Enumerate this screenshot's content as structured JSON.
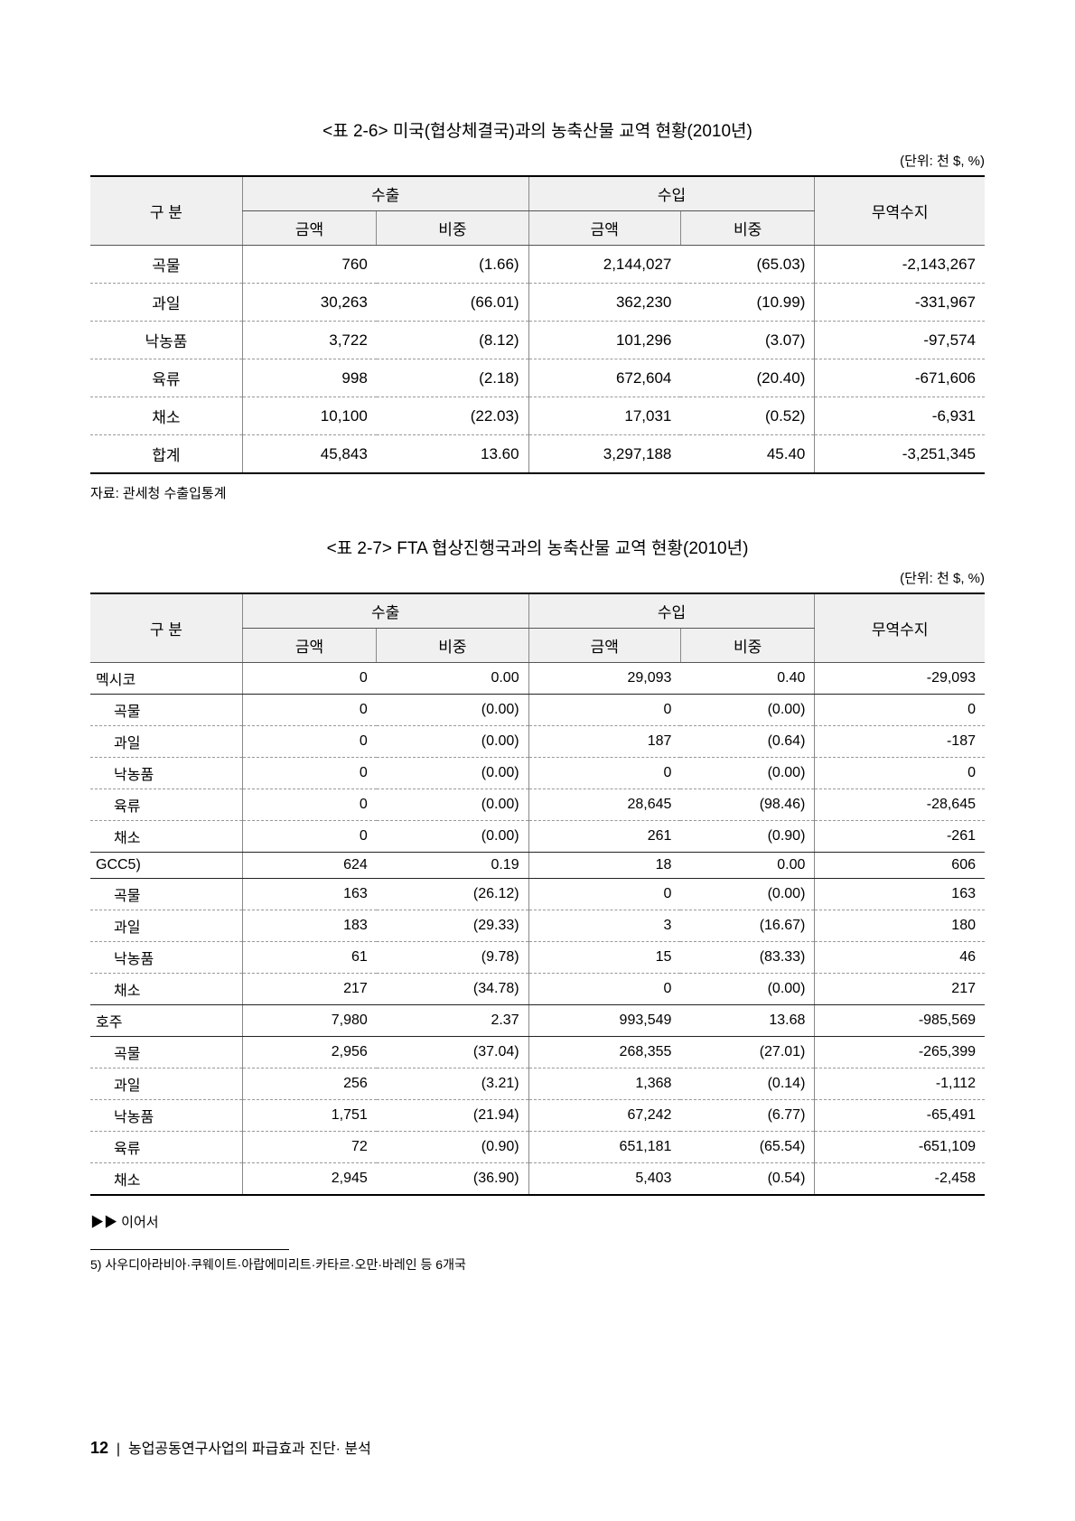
{
  "table1": {
    "title": "<표 2-6> 미국(협상체결국)과의 농축산물 교역 현황(2010년)",
    "unit": "(단위: 천 $, %)",
    "headers": {
      "category": "구 분",
      "export": "수출",
      "import": "수입",
      "balance": "무역수지",
      "amount": "금액",
      "ratio": "비중"
    },
    "rows": [
      {
        "cat": "곡물",
        "ea": "760",
        "er": "(1.66)",
        "ia": "2,144,027",
        "ir": "(65.03)",
        "bal": "-2,143,267"
      },
      {
        "cat": "과일",
        "ea": "30,263",
        "er": "(66.01)",
        "ia": "362,230",
        "ir": "(10.99)",
        "bal": "-331,967"
      },
      {
        "cat": "낙농품",
        "ea": "3,722",
        "er": "(8.12)",
        "ia": "101,296",
        "ir": "(3.07)",
        "bal": "-97,574"
      },
      {
        "cat": "육류",
        "ea": "998",
        "er": "(2.18)",
        "ia": "672,604",
        "ir": "(20.40)",
        "bal": "-671,606"
      },
      {
        "cat": "채소",
        "ea": "10,100",
        "er": "(22.03)",
        "ia": "17,031",
        "ir": "(0.52)",
        "bal": "-6,931"
      },
      {
        "cat": "합계",
        "ea": "45,843",
        "er": "13.60",
        "ia": "3,297,188",
        "ir": "45.40",
        "bal": "-3,251,345"
      }
    ],
    "source": "자료: 관세청 수출입통계"
  },
  "table2": {
    "title": "<표 2-7> FTA 협상진행국과의 농축산물 교역 현황(2010년)",
    "unit": "(단위: 천 $, %)",
    "headers": {
      "category": "구 분",
      "export": "수출",
      "import": "수입",
      "balance": "무역수지",
      "amount": "금액",
      "ratio": "비중"
    },
    "rows": [
      {
        "cat": "멕시코",
        "main": true,
        "solid": true,
        "ea": "0",
        "er": "0.00",
        "ia": "29,093",
        "ir": "0.40",
        "bal": "-29,093"
      },
      {
        "cat": "곡물",
        "ea": "0",
        "er": "(0.00)",
        "ia": "0",
        "ir": "(0.00)",
        "bal": "0"
      },
      {
        "cat": "과일",
        "ea": "0",
        "er": "(0.00)",
        "ia": "187",
        "ir": "(0.64)",
        "bal": "-187"
      },
      {
        "cat": "낙농품",
        "ea": "0",
        "er": "(0.00)",
        "ia": "0",
        "ir": "(0.00)",
        "bal": "0"
      },
      {
        "cat": "육류",
        "ea": "0",
        "er": "(0.00)",
        "ia": "28,645",
        "ir": "(98.46)",
        "bal": "-28,645"
      },
      {
        "cat": "채소",
        "solid": true,
        "ea": "0",
        "er": "(0.00)",
        "ia": "261",
        "ir": "(0.90)",
        "bal": "-261"
      },
      {
        "cat": "GCC5)",
        "main": true,
        "noindent": true,
        "solid": true,
        "ea": "624",
        "er": "0.19",
        "ia": "18",
        "ir": "0.00",
        "bal": "606"
      },
      {
        "cat": "곡물",
        "ea": "163",
        "er": "(26.12)",
        "ia": "0",
        "ir": "(0.00)",
        "bal": "163"
      },
      {
        "cat": "과일",
        "ea": "183",
        "er": "(29.33)",
        "ia": "3",
        "ir": "(16.67)",
        "bal": "180"
      },
      {
        "cat": "낙농품",
        "ea": "61",
        "er": "(9.78)",
        "ia": "15",
        "ir": "(83.33)",
        "bal": "46"
      },
      {
        "cat": "채소",
        "solid": true,
        "ea": "217",
        "er": "(34.78)",
        "ia": "0",
        "ir": "(0.00)",
        "bal": "217"
      },
      {
        "cat": "호주",
        "main": true,
        "noindent": true,
        "solid": true,
        "ea": "7,980",
        "er": "2.37",
        "ia": "993,549",
        "ir": "13.68",
        "bal": "-985,569"
      },
      {
        "cat": "곡물",
        "ea": "2,956",
        "er": "(37.04)",
        "ia": "268,355",
        "ir": "(27.01)",
        "bal": "-265,399"
      },
      {
        "cat": "과일",
        "ea": "256",
        "er": "(3.21)",
        "ia": "1,368",
        "ir": "(0.14)",
        "bal": "-1,112"
      },
      {
        "cat": "낙농품",
        "ea": "1,751",
        "er": "(21.94)",
        "ia": "67,242",
        "ir": "(6.77)",
        "bal": "-65,491"
      },
      {
        "cat": "육류",
        "ea": "72",
        "er": "(0.90)",
        "ia": "651,181",
        "ir": "(65.54)",
        "bal": "-651,109"
      },
      {
        "cat": "채소",
        "ea": "2,945",
        "er": "(36.90)",
        "ia": "5,403",
        "ir": "(0.54)",
        "bal": "-2,458"
      }
    ],
    "continued": "▶▶ 이어서"
  },
  "footnote": "5) 사우디아라비아·쿠웨이트·아랍에미리트·카타르·오만·바레인 등 6개국",
  "footer": {
    "page": "12",
    "sep": "|",
    "text": "농업공동연구사업의 파급효과 진단· 분석"
  }
}
